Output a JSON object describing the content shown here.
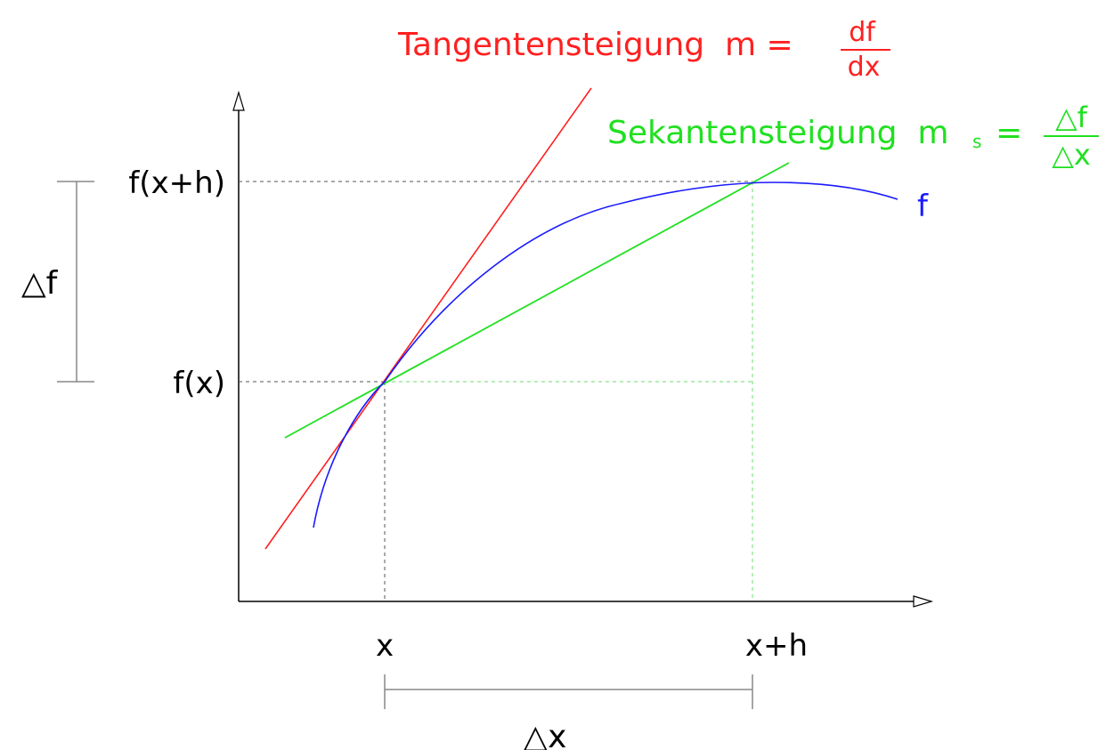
{
  "colors": {
    "axis": "#000000",
    "tangent": "#ff2020",
    "secant": "#20e020",
    "curve": "#1a1aff",
    "guide_grey": "#555555",
    "bracket_grey": "#888888",
    "guide_green": "#6fdc6f"
  },
  "tangent_label": {
    "text": "Tangentensteigung  m =",
    "frac_num": "df",
    "frac_den": "dx"
  },
  "secant_label": {
    "text": "Sekantensteigung  m",
    "sub": "s",
    "eq": "=",
    "frac_num": "△f",
    "frac_den": "△x"
  },
  "curve_label": "f",
  "y_labels": {
    "top": "f(x+h)",
    "bottom": "f(x)"
  },
  "x_labels": {
    "left": "x",
    "right": "x+h"
  },
  "delta_f": "△f",
  "delta_x": "△x"
}
